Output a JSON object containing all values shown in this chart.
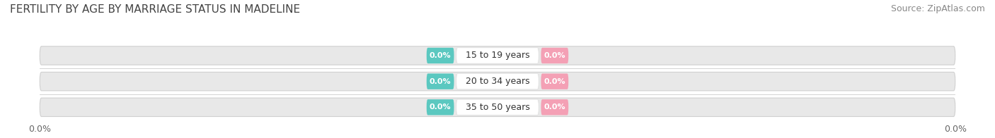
{
  "title": "FERTILITY BY AGE BY MARRIAGE STATUS IN MADELINE",
  "source": "Source: ZipAtlas.com",
  "categories": [
    "15 to 19 years",
    "20 to 34 years",
    "35 to 50 years"
  ],
  "married_values": [
    0.0,
    0.0,
    0.0
  ],
  "unmarried_values": [
    0.0,
    0.0,
    0.0
  ],
  "married_color": "#5bc8c0",
  "unmarried_color": "#f4a0b5",
  "bar_bg_color": "#e8e8e8",
  "bar_border_color": "#d0d0d0",
  "center_label_bg": "#ffffff",
  "title_fontsize": 11,
  "source_fontsize": 9,
  "label_fontsize": 8,
  "category_fontsize": 9,
  "tick_fontsize": 9,
  "legend_fontsize": 9,
  "background_color": "#ffffff",
  "xlim_left": -100,
  "xlim_right": 100
}
